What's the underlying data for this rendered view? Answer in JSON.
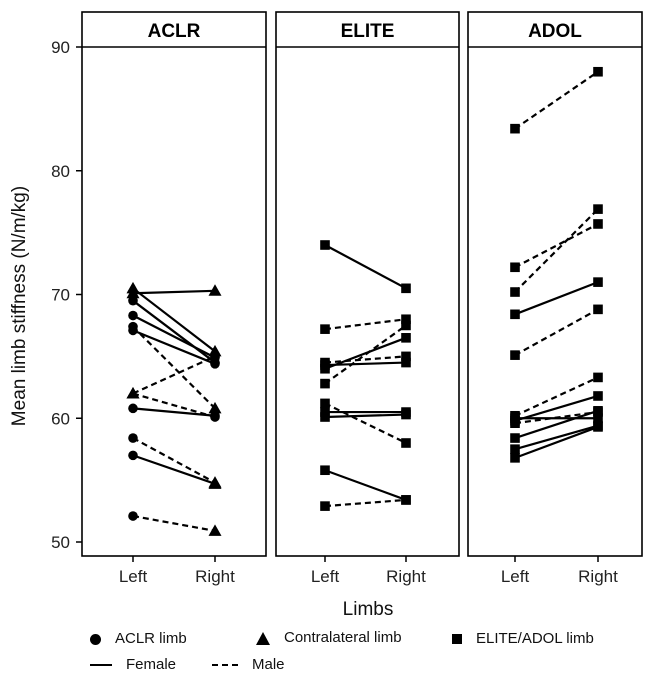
{
  "chart_data": {
    "type": "line",
    "ylabel": "Mean limb stiffness (N/m/kg)",
    "xlabel": "Limbs",
    "ylim": [
      49,
      92.5
    ],
    "yticks": [
      50,
      60,
      70,
      80,
      90
    ],
    "categories": [
      "Left",
      "Right"
    ],
    "panels": [
      {
        "title": "ACLR",
        "series": [
          {
            "sex": "Female",
            "markers": [
              "triangle",
              "triangle"
            ],
            "values": [
              70.1,
              70.3
            ]
          },
          {
            "sex": "Female",
            "markers": [
              "triangle",
              "triangle"
            ],
            "values": [
              70.5,
              65.4
            ]
          },
          {
            "sex": "Female",
            "markers": [
              "circle",
              "circle"
            ],
            "values": [
              69.5,
              64.5
            ]
          },
          {
            "sex": "Female",
            "markers": [
              "circle",
              "circle"
            ],
            "values": [
              68.3,
              64.9
            ]
          },
          {
            "sex": "Female",
            "markers": [
              "circle",
              "circle"
            ],
            "values": [
              67.1,
              64.4
            ]
          },
          {
            "sex": "Female",
            "markers": [
              "circle",
              "circle"
            ],
            "values": [
              60.8,
              60.2
            ]
          },
          {
            "sex": "Female",
            "markers": [
              "circle",
              "triangle"
            ],
            "values": [
              57.0,
              54.7
            ]
          },
          {
            "sex": "Male",
            "markers": [
              "circle",
              "triangle"
            ],
            "values": [
              67.4,
              60.8
            ]
          },
          {
            "sex": "Male",
            "markers": [
              "triangle",
              "circle"
            ],
            "values": [
              62.0,
              65.0
            ]
          },
          {
            "sex": "Male",
            "markers": [
              "triangle",
              "circle"
            ],
            "values": [
              62.0,
              60.1
            ]
          },
          {
            "sex": "Male",
            "markers": [
              "circle",
              "triangle"
            ],
            "values": [
              58.4,
              54.8
            ]
          },
          {
            "sex": "Male",
            "markers": [
              "circle",
              "triangle"
            ],
            "values": [
              52.1,
              50.9
            ]
          }
        ]
      },
      {
        "title": "ELITE",
        "series": [
          {
            "sex": "Female",
            "markers": [
              "square",
              "square"
            ],
            "values": [
              74.0,
              70.5
            ]
          },
          {
            "sex": "Female",
            "markers": [
              "square",
              "square"
            ],
            "values": [
              64.3,
              64.5
            ]
          },
          {
            "sex": "Female",
            "markers": [
              "square",
              "square"
            ],
            "values": [
              64.0,
              66.5
            ]
          },
          {
            "sex": "Female",
            "markers": [
              "square",
              "square"
            ],
            "values": [
              60.5,
              60.5
            ]
          },
          {
            "sex": "Female",
            "markers": [
              "square",
              "square"
            ],
            "values": [
              60.1,
              60.3
            ]
          },
          {
            "sex": "Female",
            "markers": [
              "square",
              "square"
            ],
            "values": [
              55.8,
              53.4
            ]
          },
          {
            "sex": "Male",
            "markers": [
              "square",
              "square"
            ],
            "values": [
              67.2,
              68.0
            ]
          },
          {
            "sex": "Male",
            "markers": [
              "square",
              "square"
            ],
            "values": [
              64.5,
              65.0
            ]
          },
          {
            "sex": "Male",
            "markers": [
              "square",
              "square"
            ],
            "values": [
              62.8,
              67.5
            ]
          },
          {
            "sex": "Male",
            "markers": [
              "square",
              "square"
            ],
            "values": [
              61.2,
              58.0
            ]
          },
          {
            "sex": "Male",
            "markers": [
              "square",
              "square"
            ],
            "values": [
              52.9,
              53.4
            ]
          }
        ]
      },
      {
        "title": "ADOL",
        "series": [
          {
            "sex": "Female",
            "markers": [
              "square",
              "square"
            ],
            "values": [
              68.4,
              71.0
            ]
          },
          {
            "sex": "Female",
            "markers": [
              "square",
              "square"
            ],
            "values": [
              60.0,
              60.0
            ]
          },
          {
            "sex": "Female",
            "markers": [
              "square",
              "square"
            ],
            "values": [
              59.8,
              61.8
            ]
          },
          {
            "sex": "Female",
            "markers": [
              "square",
              "square"
            ],
            "values": [
              58.4,
              60.6
            ]
          },
          {
            "sex": "Female",
            "markers": [
              "square",
              "square"
            ],
            "values": [
              57.5,
              59.4
            ]
          },
          {
            "sex": "Female",
            "markers": [
              "square",
              "square"
            ],
            "values": [
              56.8,
              59.3
            ]
          },
          {
            "sex": "Male",
            "markers": [
              "square",
              "square"
            ],
            "values": [
              83.4,
              88.0
            ]
          },
          {
            "sex": "Male",
            "markers": [
              "square",
              "square"
            ],
            "values": [
              72.2,
              75.7
            ]
          },
          {
            "sex": "Male",
            "markers": [
              "square",
              "square"
            ],
            "values": [
              70.2,
              76.9
            ]
          },
          {
            "sex": "Male",
            "markers": [
              "square",
              "square"
            ],
            "values": [
              65.1,
              68.8
            ]
          },
          {
            "sex": "Male",
            "markers": [
              "square",
              "square"
            ],
            "values": [
              60.2,
              63.3
            ]
          },
          {
            "sex": "Male",
            "markers": [
              "square",
              "square"
            ],
            "values": [
              59.6,
              60.5
            ]
          }
        ]
      }
    ],
    "legend": {
      "shapes": [
        {
          "marker": "circle",
          "label": "ACLR limb"
        },
        {
          "marker": "triangle",
          "label": "Contralateral limb"
        },
        {
          "marker": "square",
          "label": "ELITE/ADOL limb"
        }
      ],
      "lines": [
        {
          "style": "solid",
          "label": "Female"
        },
        {
          "style": "dashed",
          "label": "Male"
        }
      ],
      "placement": "bottom"
    },
    "grid": false
  }
}
